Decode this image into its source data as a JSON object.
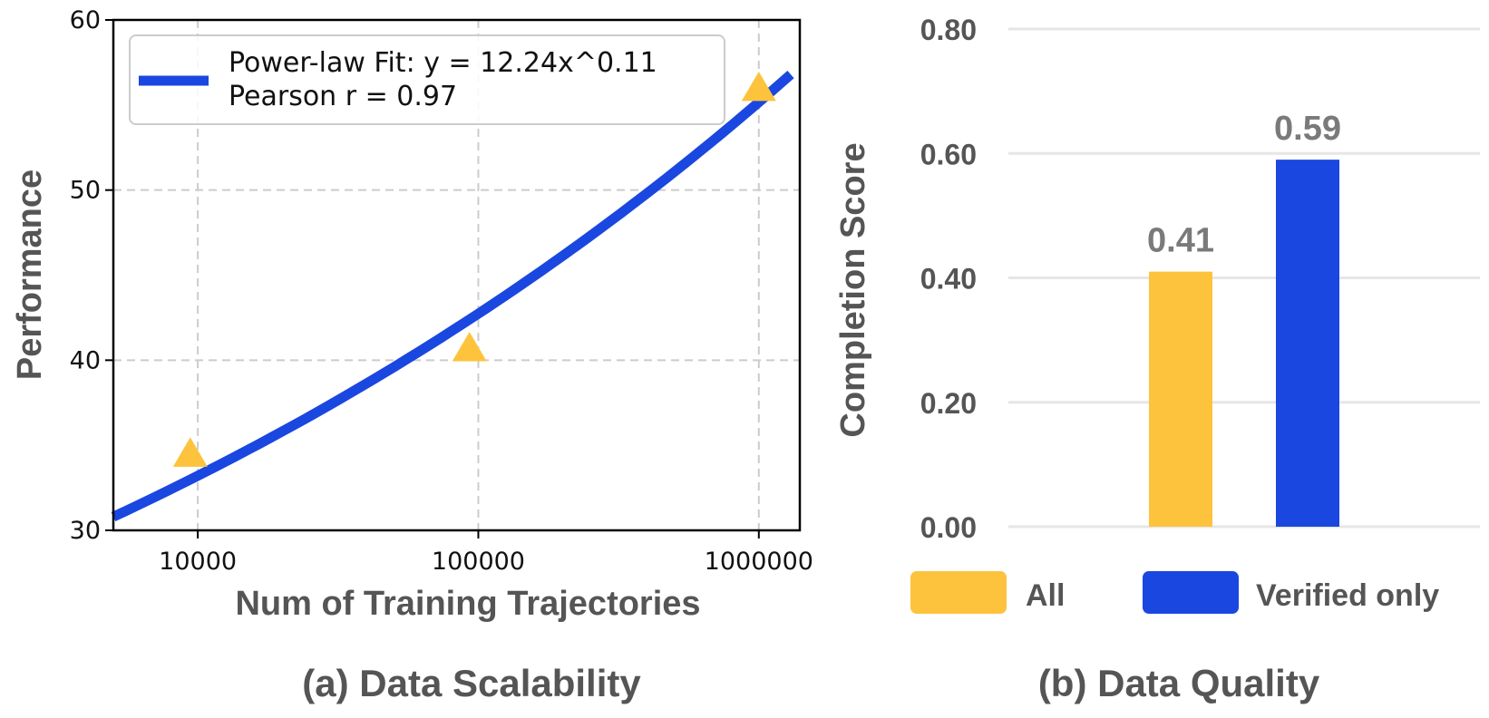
{
  "chart_data": [
    {
      "type": "scatter",
      "caption": "(a) Data Scalability",
      "xlabel": "Num of Training Trajectories",
      "ylabel": "Performance",
      "xscale": "log",
      "xlim": [
        5000,
        1400000
      ],
      "ylim": [
        30,
        60
      ],
      "xticks": [
        10000,
        100000,
        1000000
      ],
      "xtick_labels": [
        "10000",
        "100000",
        "1000000"
      ],
      "yticks": [
        30,
        40,
        50,
        60
      ],
      "ytick_labels": [
        "30",
        "40",
        "50",
        "60"
      ],
      "grid": true,
      "points": [
        {
          "x": 9400,
          "y": 34.4
        },
        {
          "x": 93000,
          "y": 40.6
        },
        {
          "x": 1000000,
          "y": 55.9
        }
      ],
      "fit": {
        "coef": 12.24,
        "exponent": 0.11,
        "x_start": 5000,
        "x_end": 1300000,
        "color": "#1a47e0"
      },
      "marker_color": "#fdc33c",
      "legend": {
        "line1": "Power-law Fit: y = 12.24x^0.11",
        "line2": "Pearson r = 0.97",
        "placement": "top-left"
      }
    },
    {
      "type": "bar",
      "caption": "(b) Data Quality",
      "ylabel": "Completion Score",
      "ylim": [
        0,
        0.8
      ],
      "yticks": [
        0,
        0.2,
        0.4,
        0.6,
        0.8
      ],
      "ytick_labels": [
        "0.00",
        "0.20",
        "0.40",
        "0.60",
        "0.80"
      ],
      "categories": [
        "All",
        "Verified only"
      ],
      "values": [
        0.41,
        0.59
      ],
      "value_labels": [
        "0.41",
        "0.59"
      ],
      "colors": [
        "#fdc33c",
        "#1a47e0"
      ],
      "legend_placement": "bottom"
    }
  ]
}
